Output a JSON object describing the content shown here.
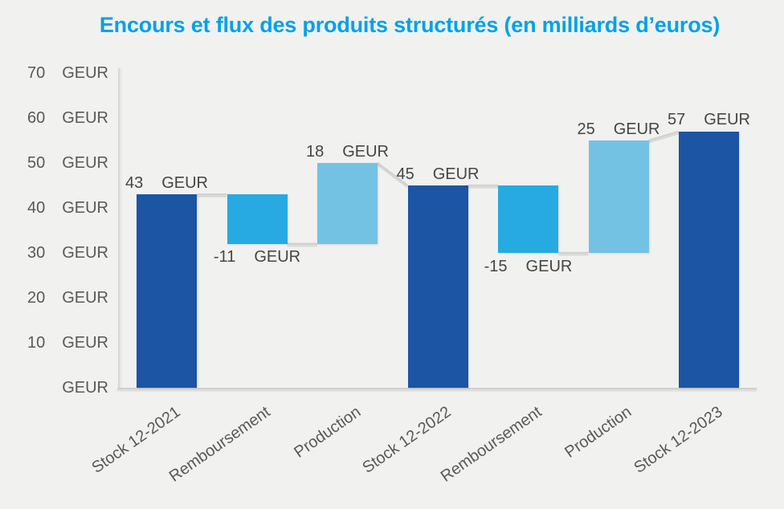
{
  "chart_data": {
    "type": "bar",
    "subtype": "waterfall",
    "title": "Encours et flux des produits structurés (en milliards d’euros)",
    "unit": "GEUR",
    "categories": [
      "Stock 12-2021",
      "Remboursement",
      "Production",
      "Stock 12-2022",
      "Remboursement",
      "Production",
      "Stock 12-2023"
    ],
    "values": [
      43,
      -11,
      18,
      45,
      -15,
      25,
      57
    ],
    "segments": [
      {
        "category": "Stock 12-2021",
        "role": "stock",
        "value": 43,
        "value_label": "43",
        "from": 0,
        "to": 43,
        "label_position": "above"
      },
      {
        "category": "Remboursement",
        "role": "flow_negative",
        "value": -11,
        "value_label": "-11",
        "from": 43,
        "to": 32,
        "label_position": "below"
      },
      {
        "category": "Production",
        "role": "flow_positive",
        "value": 18,
        "value_label": "18",
        "from": 32,
        "to": 50,
        "label_position": "above"
      },
      {
        "category": "Stock 12-2022",
        "role": "stock",
        "value": 45,
        "value_label": "45",
        "from": 0,
        "to": 45,
        "label_position": "above"
      },
      {
        "category": "Remboursement",
        "role": "flow_negative",
        "value": -15,
        "value_label": "-15",
        "from": 45,
        "to": 30,
        "label_position": "below"
      },
      {
        "category": "Production",
        "role": "flow_positive",
        "value": 25,
        "value_label": "25",
        "from": 30,
        "to": 55,
        "label_position": "above"
      },
      {
        "category": "Stock 12-2023",
        "role": "stock",
        "value": 57,
        "value_label": "57",
        "from": 0,
        "to": 57,
        "label_position": "above"
      }
    ],
    "y_axis": {
      "min": 0,
      "max": 70,
      "step": 10,
      "ticks": [
        {
          "value": 70,
          "label": "70",
          "unit": "GEUR"
        },
        {
          "value": 60,
          "label": "60",
          "unit": "GEUR"
        },
        {
          "value": 50,
          "label": "50",
          "unit": "GEUR"
        },
        {
          "value": 40,
          "label": "40",
          "unit": "GEUR"
        },
        {
          "value": 30,
          "label": "30",
          "unit": "GEUR"
        },
        {
          "value": 20,
          "label": "20",
          "unit": "GEUR"
        },
        {
          "value": 10,
          "label": "10",
          "unit": "GEUR"
        },
        {
          "value": 0,
          "label": "",
          "unit": "GEUR"
        }
      ]
    },
    "xlabel": "",
    "ylabel": "",
    "grid": false,
    "legend": null,
    "colors": {
      "stock": "#1B55A4",
      "flow_negative": "#27AAE1",
      "flow_positive": "#74C2E3",
      "title": "#00A2E8",
      "connector": "#D2D2D0",
      "axis": "#D6D6D4",
      "tick_text": "#595959",
      "data_label_text": "#454545",
      "background": "#F1F1EF"
    }
  }
}
